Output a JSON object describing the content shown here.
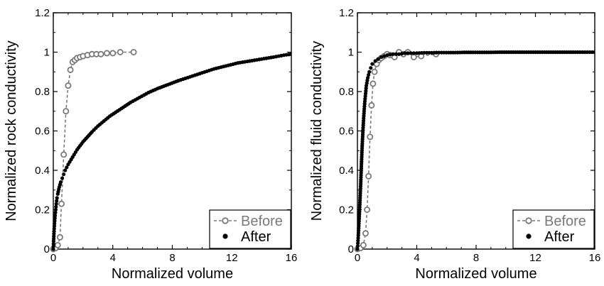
{
  "chart_data": [
    {
      "type": "scatter",
      "title": "",
      "xlabel": "Normalized volume",
      "ylabel": "Normalized rock conductivity",
      "xlim": [
        0,
        16
      ],
      "ylim": [
        0,
        1.2
      ],
      "xticks": [
        0,
        4,
        8,
        12,
        16
      ],
      "xtick_labels": [
        "0",
        "4",
        "8",
        "12",
        "16"
      ],
      "yticks": [
        0,
        0.2,
        0.4,
        0.6,
        0.8,
        1,
        1.2
      ],
      "ytick_labels": [
        "0",
        "0.2",
        "0.4",
        "0.6",
        "0.8",
        "1",
        "1.2"
      ],
      "legend_position": "bottom-right",
      "series": [
        {
          "name": "Before",
          "style": "open-circle-dashed",
          "color": "#7a7a7a",
          "x": [
            0.0,
            0.15,
            0.3,
            0.45,
            0.55,
            0.7,
            0.85,
            1.0,
            1.15,
            1.3,
            1.45,
            1.6,
            1.8,
            2.0,
            2.3,
            2.6,
            2.9,
            3.2,
            3.6,
            4.0,
            4.5,
            5.4
          ],
          "y": [
            0.0,
            0.005,
            0.02,
            0.06,
            0.23,
            0.48,
            0.7,
            0.83,
            0.91,
            0.95,
            0.96,
            0.97,
            0.975,
            0.98,
            0.985,
            0.99,
            0.99,
            0.99,
            0.995,
            0.995,
            1.0,
            1.0
          ]
        },
        {
          "name": "After",
          "style": "filled-dot",
          "color": "#000000",
          "x": [
            0.0,
            0.02,
            0.05,
            0.08,
            0.12,
            0.16,
            0.2,
            0.25,
            0.3,
            0.4,
            0.5,
            0.6,
            0.7,
            0.8,
            0.9,
            1.0,
            1.2,
            1.4,
            1.6,
            1.8,
            2.0,
            2.3,
            2.6,
            3.0,
            3.4,
            3.8,
            4.2,
            4.7,
            5.2,
            5.8,
            6.4,
            7.0,
            7.7,
            8.4,
            9.2,
            10.0,
            10.8,
            11.6,
            12.4,
            13.2,
            14.0,
            14.8,
            15.5,
            16.0
          ],
          "y": [
            0.0,
            0.04,
            0.09,
            0.13,
            0.17,
            0.2,
            0.23,
            0.26,
            0.28,
            0.315,
            0.34,
            0.36,
            0.38,
            0.4,
            0.415,
            0.43,
            0.455,
            0.48,
            0.505,
            0.525,
            0.545,
            0.57,
            0.595,
            0.625,
            0.65,
            0.675,
            0.695,
            0.72,
            0.745,
            0.77,
            0.795,
            0.815,
            0.835,
            0.855,
            0.875,
            0.895,
            0.915,
            0.93,
            0.945,
            0.955,
            0.965,
            0.975,
            0.985,
            0.99
          ]
        }
      ]
    },
    {
      "type": "scatter",
      "title": "",
      "xlabel": "Normalized volume",
      "ylabel": "Normalized fluid conductivity",
      "xlim": [
        0,
        16
      ],
      "ylim": [
        0,
        1.2
      ],
      "xticks": [
        0,
        4,
        8,
        12,
        16
      ],
      "xtick_labels": [
        "0",
        "4",
        "8",
        "12",
        "16"
      ],
      "yticks": [
        0,
        0.2,
        0.4,
        0.6,
        0.8,
        1,
        1.2
      ],
      "ytick_labels": [
        "0",
        "0.2",
        "0.4",
        "0.6",
        "0.8",
        "1",
        "1.2"
      ],
      "legend_position": "bottom-right",
      "series": [
        {
          "name": "Before",
          "style": "open-circle-dashed",
          "color": "#7a7a7a",
          "x": [
            0.0,
            0.2,
            0.4,
            0.55,
            0.65,
            0.75,
            0.85,
            0.95,
            1.05,
            1.15,
            1.3,
            1.45,
            1.6,
            1.8,
            2.0,
            2.2,
            2.5,
            2.8,
            3.1,
            3.4,
            3.8,
            4.3,
            5.3
          ],
          "y": [
            0.0,
            0.005,
            0.02,
            0.08,
            0.2,
            0.37,
            0.57,
            0.73,
            0.84,
            0.9,
            0.94,
            0.96,
            0.97,
            0.98,
            0.99,
            0.985,
            0.975,
            1.0,
            0.99,
            1.0,
            0.975,
            0.98,
            0.99
          ]
        },
        {
          "name": "After",
          "style": "filled-dot",
          "color": "#000000",
          "x": [
            0.0,
            0.03,
            0.06,
            0.1,
            0.14,
            0.18,
            0.22,
            0.26,
            0.3,
            0.35,
            0.4,
            0.45,
            0.5,
            0.55,
            0.6,
            0.7,
            0.8,
            0.9,
            1.0,
            1.2,
            1.4,
            1.6,
            1.8,
            2.0,
            2.4,
            2.8,
            3.2,
            3.6,
            4.0,
            4.5,
            5.0,
            5.5,
            6.0,
            6.6,
            7.2,
            7.8,
            8.4,
            9.0,
            9.6,
            10.2,
            10.8,
            11.4,
            12.0,
            12.6,
            13.2,
            13.8,
            14.4,
            15.0,
            15.5,
            16.0
          ],
          "y": [
            0.0,
            0.03,
            0.07,
            0.13,
            0.19,
            0.26,
            0.33,
            0.41,
            0.49,
            0.57,
            0.64,
            0.7,
            0.75,
            0.79,
            0.83,
            0.87,
            0.9,
            0.92,
            0.94,
            0.955,
            0.965,
            0.975,
            0.98,
            0.985,
            0.99,
            0.99,
            0.995,
            0.995,
            0.995,
            0.997,
            0.997,
            0.998,
            0.998,
            0.998,
            0.999,
            0.999,
            0.999,
            0.999,
            1.0,
            1.0,
            1.0,
            1.0,
            1.0,
            1.0,
            1.0,
            1.0,
            1.0,
            1.0,
            1.0,
            1.0
          ]
        }
      ]
    }
  ]
}
